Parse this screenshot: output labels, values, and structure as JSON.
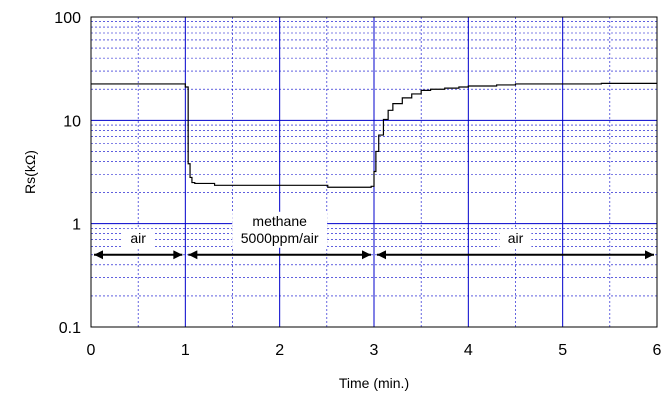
{
  "chart_data": {
    "type": "line",
    "xlabel": "Time (min.)",
    "ylabel": "Rs(kΩ)",
    "xlim": [
      0,
      6
    ],
    "ylim": [
      0.1,
      100
    ],
    "y_scale": "log",
    "x_ticks": [
      "0",
      "1",
      "2",
      "3",
      "4",
      "5",
      "6"
    ],
    "y_ticks": [
      "0.1",
      "1",
      "10",
      "100"
    ],
    "grid": true,
    "series": [
      {
        "x": [
          0,
          0.98,
          1.0,
          1.03,
          1.05,
          1.07,
          1.1,
          1.3,
          1.31,
          2.5,
          2.51,
          2.95,
          2.97,
          3.0,
          3.02,
          3.05,
          3.1,
          3.15,
          3.2,
          3.3,
          3.4,
          3.5,
          3.6,
          3.75,
          3.9,
          4.0,
          4.3,
          4.5,
          5.0,
          5.4,
          5.41,
          6.0
        ],
        "y": [
          22.5,
          22.5,
          21.0,
          3.8,
          2.8,
          2.5,
          2.45,
          2.45,
          2.35,
          2.35,
          2.25,
          2.25,
          2.3,
          3.2,
          5.0,
          7.2,
          10.2,
          12.5,
          14.5,
          16.5,
          18.0,
          19.5,
          20.0,
          20.5,
          21.0,
          21.5,
          22.0,
          22.5,
          22.5,
          22.5,
          22.8,
          22.8
        ]
      }
    ],
    "annotations": [
      {
        "text": "air",
        "x_start": 0,
        "x_end": 1,
        "y": 0.5
      },
      {
        "text": "methane",
        "text2": "5000ppm/air",
        "x_start": 1,
        "x_end": 3,
        "y": 0.5
      },
      {
        "text": "air",
        "x_start": 3,
        "x_end": 6,
        "y": 0.5
      }
    ]
  }
}
